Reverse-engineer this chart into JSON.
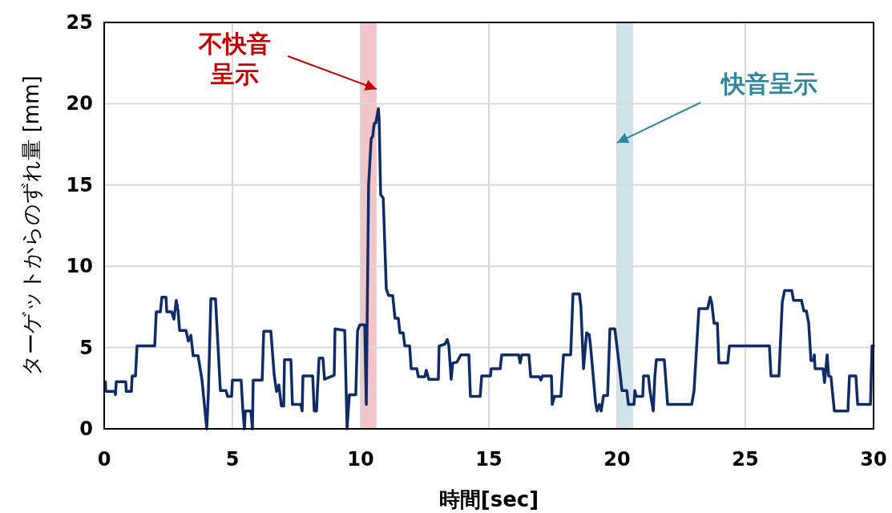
{
  "chart_data": {
    "type": "line",
    "xlabel": "時間[sec]",
    "ylabel": "ターゲットからのずれ量 [mm]",
    "xlim": [
      0,
      30
    ],
    "ylim": [
      0,
      25
    ],
    "xticks": [
      0,
      5,
      10,
      15,
      20,
      25,
      30
    ],
    "yticks": [
      0,
      5,
      10,
      15,
      20,
      25
    ],
    "grid": true,
    "bands": [
      {
        "axis": "x",
        "from": 10.0,
        "to": 10.62,
        "color": "#f2c6c8"
      },
      {
        "axis": "x",
        "from": 20.0,
        "to": 20.62,
        "color": "#cfe3e8"
      }
    ],
    "annotations": [
      {
        "text": "不快音呈示",
        "x": 10.62,
        "y": 20.9
      },
      {
        "text": "快音呈示",
        "x": 20.0,
        "y": 17.6
      }
    ],
    "x": [
      0.05,
      0.06,
      0.41,
      0.44,
      0.47,
      0.84,
      0.86,
      1.06,
      1.09,
      1.22,
      1.28,
      1.97,
      2.03,
      2.19,
      2.25,
      2.41,
      2.44,
      2.63,
      2.72,
      2.81,
      2.88,
      2.94,
      3.19,
      3.28,
      3.38,
      3.47,
      3.66,
      3.81,
      4.0,
      4.06,
      4.16,
      4.34,
      4.53,
      4.75,
      4.81,
      4.97,
      5.0,
      5.34,
      5.41,
      5.47,
      5.5,
      5.72,
      5.78,
      5.81,
      6.16,
      6.22,
      6.5,
      6.63,
      6.72,
      6.81,
      6.91,
      7.0,
      7.03,
      7.28,
      7.34,
      7.66,
      7.72,
      7.75,
      8.13,
      8.19,
      8.28,
      8.31,
      8.38,
      8.53,
      8.59,
      8.97,
      9.0,
      9.38,
      9.47,
      9.56,
      9.81,
      9.88,
      9.97,
      10.16,
      10.22,
      10.31,
      10.41,
      10.47,
      10.53,
      10.59,
      10.69,
      10.72,
      10.78,
      10.88,
      11.0,
      11.09,
      11.25,
      11.34,
      11.47,
      11.53,
      11.66,
      11.72,
      11.91,
      11.97,
      12.19,
      12.25,
      12.5,
      12.56,
      12.66,
      13.03,
      13.06,
      13.28,
      13.38,
      13.44,
      13.53,
      13.59,
      13.75,
      13.91,
      14.22,
      14.28,
      14.66,
      14.72,
      15.06,
      15.09,
      15.44,
      15.5,
      16.16,
      16.22,
      16.28,
      16.56,
      16.63,
      16.97,
      17.03,
      17.09,
      17.44,
      17.47,
      17.56,
      17.81,
      17.91,
      18.19,
      18.28,
      18.53,
      18.59,
      18.69,
      18.81,
      18.91,
      18.97,
      19.16,
      19.22,
      19.31,
      19.38,
      19.47,
      19.63,
      19.72,
      19.91,
      20.06,
      20.19,
      20.38,
      20.44,
      20.66,
      20.69,
      20.75,
      21.0,
      21.03,
      21.22,
      21.28,
      21.41,
      21.47,
      21.53,
      21.84,
      21.97,
      22.91,
      23.0,
      23.19,
      23.53,
      23.63,
      23.69,
      23.78,
      23.91,
      23.97,
      24.31,
      24.38,
      25.94,
      26.0,
      26.31,
      26.44,
      26.53,
      26.81,
      26.88,
      27.19,
      27.28,
      27.38,
      27.47,
      27.56,
      27.66,
      27.69,
      27.72,
      28.03,
      28.09,
      28.19,
      28.25,
      28.34,
      28.47,
      29.0,
      29.06,
      29.31,
      29.38,
      29.88,
      29.94,
      30.0
    ],
    "series": [
      {
        "color": "#102c66",
        "values": [
          2.9,
          2.3,
          2.3,
          2.1,
          2.9,
          2.9,
          2.3,
          2.3,
          3.25,
          3.25,
          5.1,
          5.1,
          7.2,
          7.2,
          8.1,
          8.1,
          7.2,
          7.2,
          6.75,
          7.9,
          7.3,
          6.05,
          6.05,
          5.4,
          5.75,
          4.5,
          4.5,
          3.05,
          0,
          2.1,
          8.0,
          8.0,
          2.35,
          2.35,
          2.0,
          2.0,
          3.0,
          3.0,
          1.1,
          0,
          1.1,
          1.1,
          0,
          3.0,
          3.0,
          6.0,
          6.0,
          3.3,
          2.3,
          2.7,
          1.4,
          1.4,
          4.25,
          4.25,
          1.5,
          1.5,
          1.1,
          3.25,
          3.25,
          1.1,
          1.1,
          2.2,
          4.35,
          4.35,
          3.05,
          3.3,
          6.15,
          6.05,
          0,
          2.1,
          2.1,
          6.05,
          6.4,
          6.4,
          1.5,
          15.0,
          17.85,
          18.0,
          18.8,
          18.8,
          19.7,
          19.1,
          14.4,
          14.2,
          8.6,
          8.2,
          8.2,
          6.8,
          6.8,
          5.9,
          5.9,
          5.1,
          5.1,
          3.7,
          3.7,
          3.2,
          3.2,
          3.6,
          3.05,
          3.05,
          5.1,
          5.2,
          5.5,
          5.1,
          3.05,
          4.05,
          4.1,
          4.55,
          4.55,
          2.0,
          2.0,
          3.25,
          3.25,
          3.7,
          3.7,
          4.55,
          4.55,
          4.05,
          4.55,
          4.55,
          3.2,
          3.2,
          3.0,
          3.25,
          3.25,
          1.5,
          2.0,
          2.0,
          4.55,
          4.55,
          8.3,
          8.3,
          7.5,
          3.7,
          5.9,
          5.8,
          5.0,
          1.6,
          1.1,
          1.5,
          1.1,
          2.05,
          2.05,
          6.15,
          6.15,
          4.2,
          2.35,
          2.35,
          1.5,
          1.5,
          2.35,
          2.0,
          2.0,
          3.25,
          3.25,
          2.35,
          1.1,
          3.2,
          4.25,
          4.25,
          1.5,
          1.5,
          2.35,
          7.4,
          7.4,
          8.1,
          7.75,
          6.5,
          6.5,
          4.05,
          4.05,
          5.1,
          5.1,
          3.25,
          3.25,
          7.8,
          8.5,
          8.5,
          7.9,
          7.9,
          7.25,
          7.25,
          6.5,
          4.2,
          4.2,
          4.55,
          3.7,
          3.7,
          2.85,
          4.55,
          3.25,
          3.2,
          1.1,
          1.1,
          3.25,
          3.25,
          1.5,
          1.5,
          5.1,
          5.1
        ]
      }
    ]
  }
}
